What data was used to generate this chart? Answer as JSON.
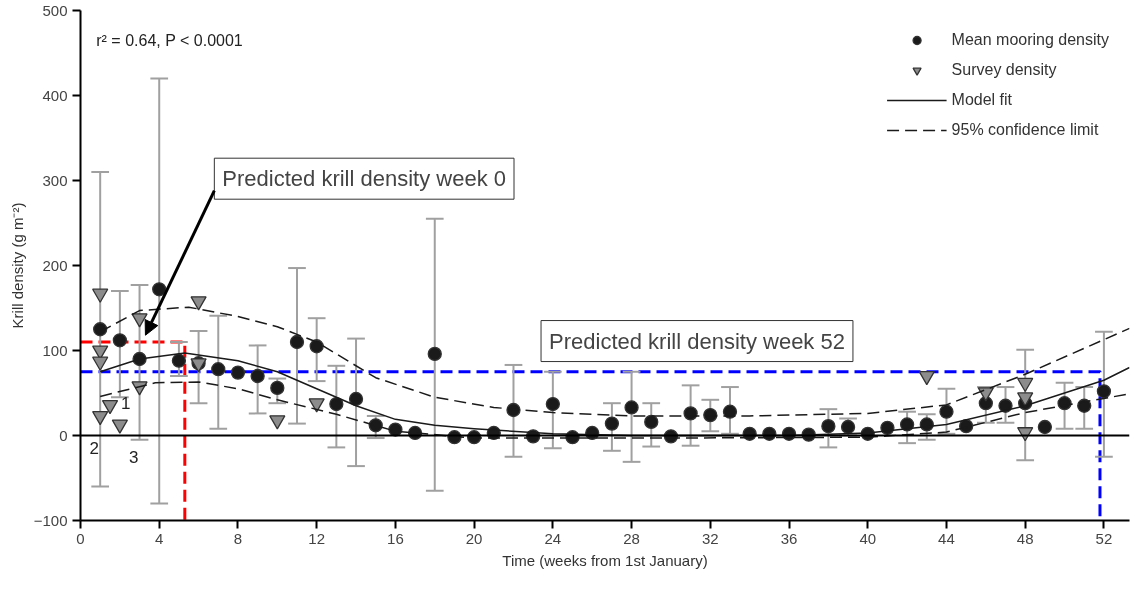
{
  "chart_data": {
    "type": "scatter",
    "xlabel": "Time (weeks from 1st January)",
    "ylabel": "Krill density (g m⁻²)",
    "xlim": [
      0,
      53.3
    ],
    "ylim": [
      -100,
      500
    ],
    "xticks": [
      0,
      4,
      8,
      12,
      16,
      20,
      24,
      28,
      32,
      36,
      40,
      44,
      48,
      52
    ],
    "yticks": [
      {
        "value": -100,
        "label": "−100"
      },
      0,
      100,
      200,
      300,
      400,
      500
    ],
    "grid": false,
    "legend": "top right",
    "ref_lines": [
      {
        "axis": "y",
        "value": 0,
        "color": "#000000",
        "line_style": "solid"
      }
    ],
    "annotations": [
      "r² = 0.64, P < 0.0001",
      "Predicted krill density week 0",
      "Predicted krill density week 52",
      "1",
      "2",
      "3"
    ],
    "series": [
      {
        "type": "line",
        "color": "#ff0000",
        "line_style": "dashed",
        "marker": "none",
        "x": [
          0,
          5.3,
          5.3
        ],
        "values": [
          110,
          110,
          -100
        ]
      },
      {
        "type": "line",
        "color": "#0000ff",
        "line_style": "dashed",
        "marker": "none",
        "x": [
          0,
          51.8,
          51.8
        ],
        "values": [
          75,
          75,
          -100
        ]
      },
      {
        "name": "Mean mooring density",
        "color": "#1a1a1a",
        "marker": "circle",
        "x": [
          1,
          2,
          3,
          4,
          5,
          6,
          7,
          8,
          9,
          10,
          11,
          12,
          13,
          14,
          15,
          16,
          17,
          18,
          19,
          20,
          21,
          22,
          23,
          24,
          25,
          26,
          27,
          28,
          29,
          30,
          31,
          32,
          33,
          34,
          35,
          36,
          37,
          38,
          39,
          40,
          41,
          42,
          43,
          44,
          45,
          46,
          47,
          48,
          49,
          50,
          51,
          52
        ],
        "values": [
          125,
          112,
          90,
          172,
          88,
          85,
          78,
          74,
          70,
          56,
          110,
          105,
          37,
          43,
          12,
          7,
          3,
          96,
          -2,
          -2,
          3,
          30,
          -1,
          37,
          -2,
          3,
          14,
          33,
          16,
          -1,
          26,
          24,
          28,
          2,
          2,
          2,
          1,
          11,
          10,
          2,
          9,
          13,
          13,
          28,
          11,
          38,
          35,
          38,
          10,
          38,
          35,
          52
        ],
        "errors": [
          [
            -60,
            310
          ],
          [
            45,
            170
          ],
          [
            -5,
            177
          ],
          [
            -80,
            420
          ],
          [
            70,
            110
          ],
          [
            38,
            123
          ],
          [
            8,
            141
          ],
          null,
          [
            26,
            106
          ],
          [
            38,
            67
          ],
          [
            14,
            197
          ],
          [
            64,
            138
          ],
          [
            -14,
            82
          ],
          [
            -36,
            114
          ],
          [
            -3,
            23
          ],
          null,
          null,
          [
            -65,
            255
          ],
          null,
          null,
          null,
          [
            -25,
            83
          ],
          null,
          [
            -15,
            75
          ],
          null,
          null,
          [
            -18,
            38
          ],
          [
            -31,
            75
          ],
          [
            -13,
            38
          ],
          null,
          [
            -12,
            59
          ],
          [
            5,
            42
          ],
          [
            2,
            57
          ],
          null,
          null,
          null,
          null,
          [
            -14,
            31
          ],
          [
            0,
            20
          ],
          null,
          null,
          [
            -9,
            28
          ],
          [
            -5,
            25
          ],
          [
            2,
            55
          ],
          null,
          [
            15,
            57
          ],
          [
            15,
            57
          ],
          [
            -29,
            101
          ],
          null,
          [
            8,
            62
          ],
          [
            8,
            57
          ],
          [
            -25,
            122
          ]
        ]
      },
      {
        "name": "Survey density",
        "color": "#8c8c8c",
        "marker": "triangle",
        "x": [
          1,
          1,
          1,
          3,
          3,
          6,
          6,
          1.5,
          1,
          2,
          10,
          12,
          43,
          46,
          48,
          48,
          48
        ],
        "values": [
          167,
          100,
          87,
          138,
          58,
          158,
          85,
          36,
          23,
          13,
          18,
          38,
          70,
          51,
          62,
          45,
          4
        ]
      },
      {
        "type": "line",
        "name": "Model fit",
        "color": "#1a1a1a",
        "line_style": "solid",
        "marker": "none",
        "x": [
          1,
          3,
          5.3,
          8,
          10,
          12,
          14,
          16,
          18,
          20,
          24,
          28,
          32,
          36,
          40,
          44,
          48,
          52,
          53.3
        ],
        "values": [
          75,
          90,
          97,
          88,
          75,
          55,
          35,
          19,
          12,
          8,
          2,
          0,
          0,
          0,
          3,
          13,
          35,
          65,
          80
        ]
      },
      {
        "type": "line",
        "name": "95% confidence limit",
        "color": "#1a1a1a",
        "line_style": "dashed",
        "marker": "none",
        "x": [
          1,
          3,
          5.5,
          8,
          10,
          12,
          15,
          18,
          21,
          24,
          28,
          34,
          40,
          44,
          48,
          53.3
        ],
        "values": [
          122,
          147,
          151,
          140,
          128,
          110,
          68,
          45,
          33,
          27,
          23,
          23,
          26,
          36,
          72,
          126
        ]
      },
      {
        "type": "line",
        "color": "#1a1a1a",
        "line_style": "dashed",
        "marker": "none",
        "x": [
          1,
          3.8,
          6,
          8,
          10,
          13,
          16,
          20,
          24,
          30,
          40,
          44,
          48,
          53.3
        ],
        "values": [
          46,
          62,
          63,
          55,
          42,
          25,
          5,
          -3,
          -3,
          -3,
          -2,
          4,
          27,
          49
        ]
      }
    ]
  }
}
